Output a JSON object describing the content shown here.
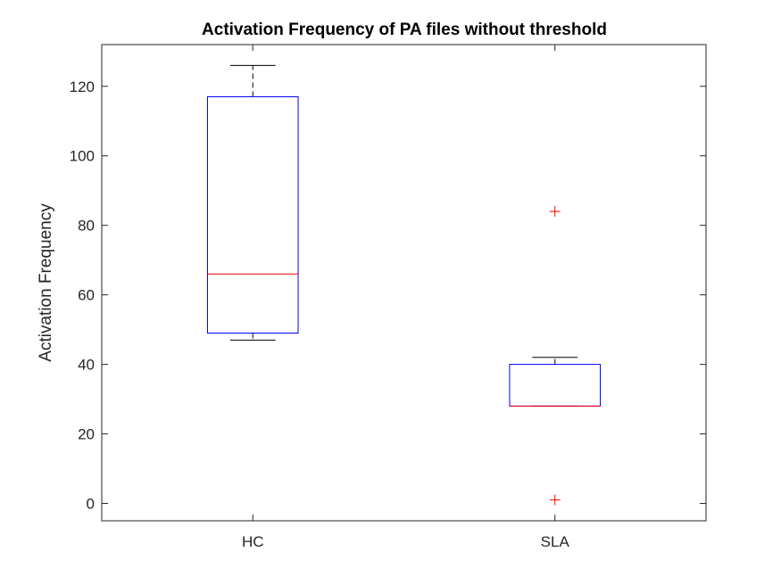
{
  "chart_data": {
    "type": "box",
    "title": "Activation Frequency of PA files without threshold",
    "xlabel": "",
    "ylabel": "Activation Frequency",
    "categories": [
      "HC",
      "SLA"
    ],
    "ylim": [
      -5,
      132
    ],
    "yticks": [
      0,
      20,
      40,
      60,
      80,
      100,
      120
    ],
    "grid": false,
    "boxes": [
      {
        "category": "HC",
        "whisker_low": 47,
        "q1": 49,
        "median": 66,
        "q3": 117,
        "whisker_high": 126,
        "outliers": []
      },
      {
        "category": "SLA",
        "whisker_low": 28,
        "q1": 28,
        "median": 28,
        "q3": 40,
        "whisker_high": 42,
        "outliers": [
          84,
          1
        ]
      }
    ],
    "colors": {
      "box": "#0000ff",
      "median": "#ff0000",
      "whisker": "#000000",
      "outlier": "#ff0000",
      "axes": "#262626"
    }
  }
}
